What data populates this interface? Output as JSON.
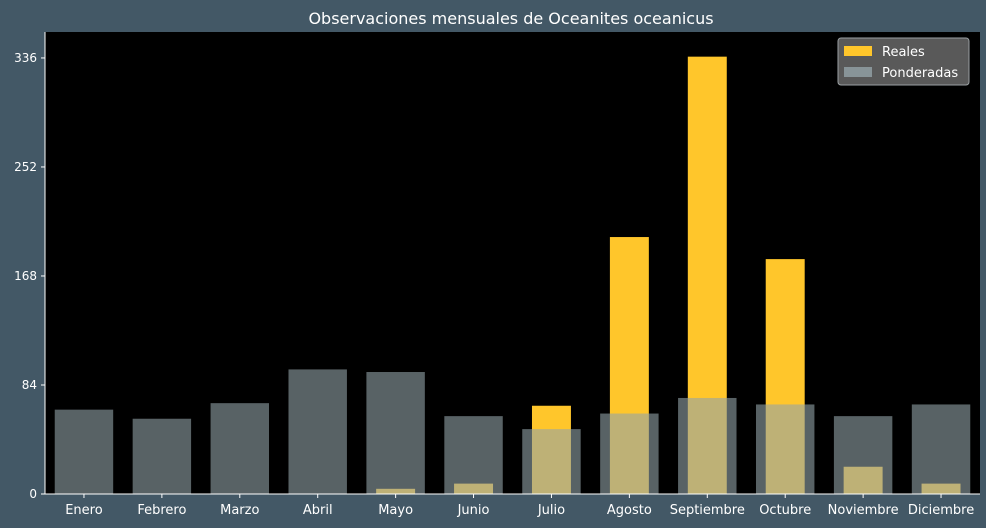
{
  "chart_data": {
    "type": "bar",
    "title": "Observaciones mensuales de Oceanites oceanicus",
    "xlabel": "",
    "ylabel": "",
    "categories": [
      "Enero",
      "Febrero",
      "Marzo",
      "Abril",
      "Mayo",
      "Junio",
      "Julio",
      "Agosto",
      "Septiembre",
      "Octubre",
      "Noviembre",
      "Diciembre"
    ],
    "series": [
      {
        "name": "Reales",
        "color": "#ffc62b",
        "values": [
          0,
          0,
          0,
          0,
          4,
          8,
          68,
          198,
          337,
          181,
          21,
          8
        ]
      },
      {
        "name": "Ponderadas",
        "color": "#93a3a8",
        "values": [
          65,
          58,
          70,
          96,
          94,
          60,
          50,
          62,
          74,
          69,
          60,
          69
        ]
      }
    ],
    "ylim": [
      0,
      356
    ],
    "yticks": [
      0,
      84,
      168,
      252,
      336
    ],
    "grid": false,
    "legend_position": "top-right",
    "background": "#000000",
    "figure_background": "#435866"
  }
}
